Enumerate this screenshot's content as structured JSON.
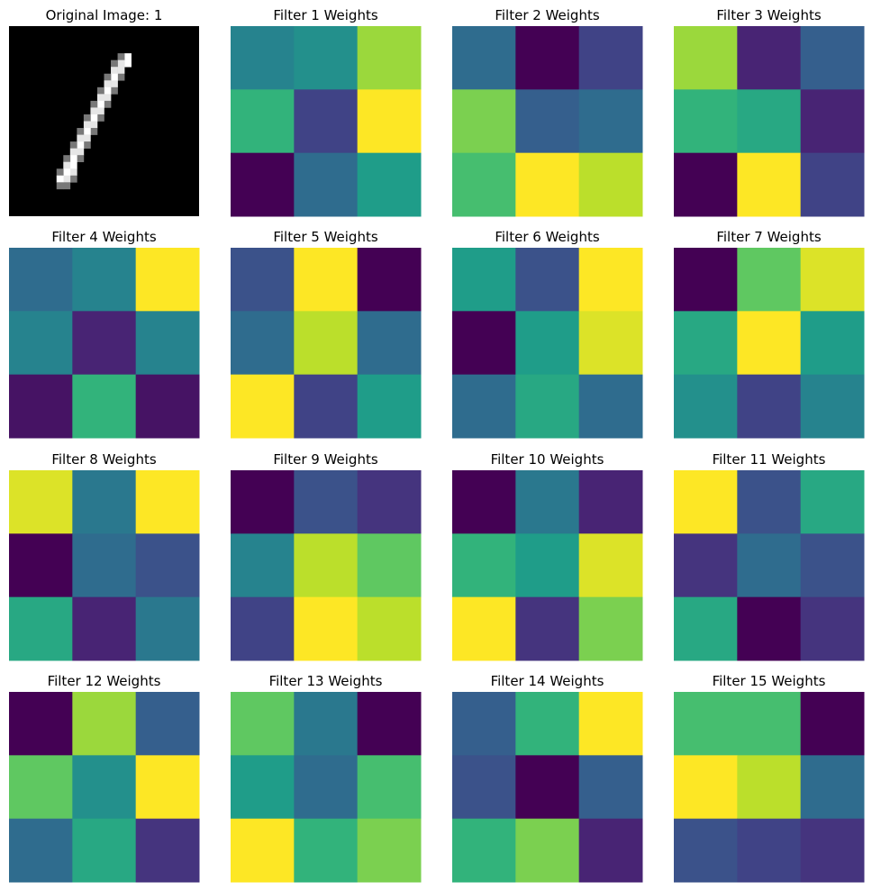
{
  "chart_data": {
    "type": "heatmap",
    "colormap": "viridis",
    "grid": false,
    "axes": false,
    "panels": [
      {
        "title": "Original Image: 1",
        "kind": "digit",
        "colormap": "gray",
        "rows": 28,
        "cols": 28,
        "strokes": [
          {
            "col": 17,
            "rows": [
              4,
              5
            ]
          },
          {
            "col": 16,
            "rows": [
              4,
              5,
              6,
              7
            ]
          },
          {
            "col": 15,
            "rows": [
              5,
              6,
              7,
              8,
              9
            ]
          },
          {
            "col": 14,
            "rows": [
              7,
              8,
              9,
              10,
              11
            ]
          },
          {
            "col": 13,
            "rows": [
              9,
              10,
              11,
              12,
              13
            ]
          },
          {
            "col": 12,
            "rows": [
              11,
              12,
              13,
              14,
              15
            ]
          },
          {
            "col": 11,
            "rows": [
              13,
              14,
              15,
              16,
              17
            ]
          },
          {
            "col": 10,
            "rows": [
              15,
              16,
              17,
              18,
              19
            ]
          },
          {
            "col": 9,
            "rows": [
              17,
              18,
              19,
              20,
              21,
              22
            ]
          },
          {
            "col": 8,
            "rows": [
              19,
              20,
              21,
              22,
              23
            ]
          },
          {
            "col": 7,
            "rows": [
              21,
              22,
              23
            ]
          }
        ]
      },
      {
        "title": "Filter 1 Weights",
        "weights": [
          [
            0.45,
            0.5,
            0.85
          ],
          [
            0.65,
            0.2,
            1.0
          ],
          [
            0.0,
            0.35,
            0.55
          ]
        ]
      },
      {
        "title": "Filter 2 Weights",
        "weights": [
          [
            0.35,
            0.0,
            0.2
          ],
          [
            0.8,
            0.3,
            0.35
          ],
          [
            0.7,
            1.0,
            0.9
          ]
        ]
      },
      {
        "title": "Filter 3 Weights",
        "weights": [
          [
            0.85,
            0.1,
            0.3
          ],
          [
            0.65,
            0.6,
            0.1
          ],
          [
            0.0,
            1.0,
            0.2
          ]
        ]
      },
      {
        "title": "Filter 4 Weights",
        "weights": [
          [
            0.35,
            0.45,
            1.0
          ],
          [
            0.45,
            0.1,
            0.45
          ],
          [
            0.05,
            0.65,
            0.05
          ]
        ]
      },
      {
        "title": "Filter 5 Weights",
        "weights": [
          [
            0.25,
            1.0,
            0.0
          ],
          [
            0.35,
            0.9,
            0.35
          ],
          [
            1.0,
            0.2,
            0.55
          ]
        ]
      },
      {
        "title": "Filter 6 Weights",
        "weights": [
          [
            0.55,
            0.25,
            1.0
          ],
          [
            0.0,
            0.55,
            0.95
          ],
          [
            0.35,
            0.6,
            0.35
          ]
        ]
      },
      {
        "title": "Filter 7 Weights",
        "weights": [
          [
            0.0,
            0.75,
            0.95
          ],
          [
            0.6,
            1.0,
            0.55
          ],
          [
            0.5,
            0.2,
            0.45
          ]
        ]
      },
      {
        "title": "Filter 8 Weights",
        "weights": [
          [
            0.95,
            0.4,
            1.0
          ],
          [
            0.0,
            0.35,
            0.25
          ],
          [
            0.6,
            0.1,
            0.4
          ]
        ]
      },
      {
        "title": "Filter 9 Weights",
        "weights": [
          [
            0.0,
            0.25,
            0.15
          ],
          [
            0.45,
            0.9,
            0.75
          ],
          [
            0.2,
            1.0,
            0.9
          ]
        ]
      },
      {
        "title": "Filter 10 Weights",
        "weights": [
          [
            0.0,
            0.4,
            0.1
          ],
          [
            0.65,
            0.55,
            0.95
          ],
          [
            1.0,
            0.15,
            0.8
          ]
        ]
      },
      {
        "title": "Filter 11 Weights",
        "weights": [
          [
            1.0,
            0.25,
            0.6
          ],
          [
            0.15,
            0.35,
            0.25
          ],
          [
            0.6,
            0.0,
            0.15
          ]
        ]
      },
      {
        "title": "Filter 12 Weights",
        "weights": [
          [
            0.0,
            0.85,
            0.3
          ],
          [
            0.75,
            0.5,
            1.0
          ],
          [
            0.35,
            0.6,
            0.15
          ]
        ]
      },
      {
        "title": "Filter 13 Weights",
        "weights": [
          [
            0.75,
            0.4,
            0.0
          ],
          [
            0.55,
            0.35,
            0.7
          ],
          [
            1.0,
            0.65,
            0.8
          ]
        ]
      },
      {
        "title": "Filter 14 Weights",
        "weights": [
          [
            0.3,
            0.65,
            1.0
          ],
          [
            0.25,
            0.0,
            0.3
          ],
          [
            0.65,
            0.8,
            0.1
          ]
        ]
      },
      {
        "title": "Filter 15 Weights",
        "weights": [
          [
            0.7,
            0.7,
            0.0
          ],
          [
            1.0,
            0.9,
            0.35
          ],
          [
            0.25,
            0.2,
            0.15
          ]
        ]
      }
    ]
  }
}
